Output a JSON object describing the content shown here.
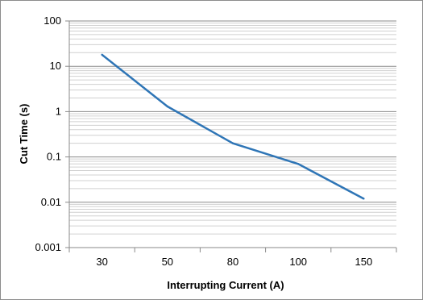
{
  "chart_data": {
    "type": "line",
    "title": "",
    "xlabel": "Interrupting Current (A)",
    "ylabel": "Cut Time (s)",
    "categories": [
      "30",
      "50",
      "80",
      "100",
      "150"
    ],
    "series": [
      {
        "values": [
          18,
          1.3,
          0.2,
          0.07,
          0.012
        ]
      }
    ],
    "y_scale": "log",
    "ylim": [
      0.001,
      100
    ],
    "y_ticks": [
      "100",
      "10",
      "1",
      "0.1",
      "0.01",
      "0.001"
    ],
    "grid": "horizontal major and minor",
    "legend": "none",
    "line_color": "#2e75b6"
  }
}
